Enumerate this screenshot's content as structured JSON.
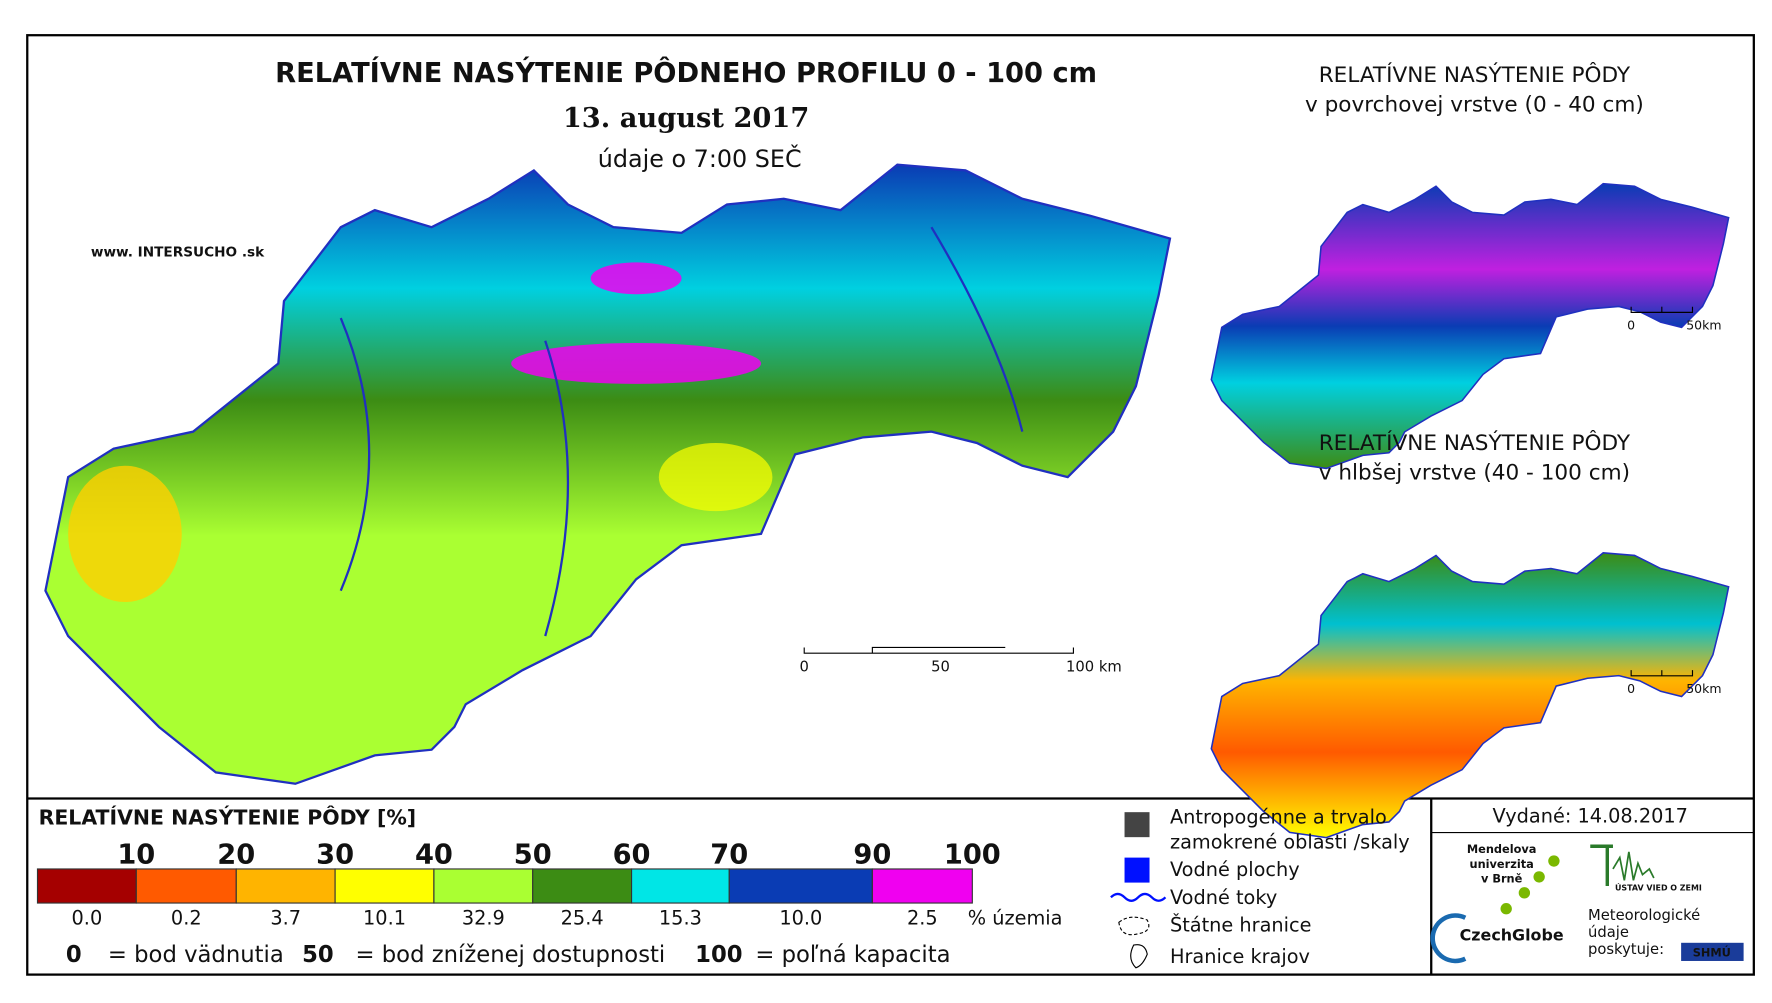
{
  "header": {
    "title": "RELATÍVNE NASÝTENIE PÔDNEHO PROFILU 0 - 100 cm",
    "date": "13. august 2017",
    "time": "údaje o 7:00 SEČ",
    "website": "www. INTERSUCHO .sk"
  },
  "main_map": {
    "scale": [
      "0",
      "50",
      "100 km"
    ]
  },
  "insets": [
    {
      "title": [
        "RELATÍVNE NASÝTENIE PÔDY",
        "v povrchovej vrstve (0 - 40 cm)"
      ],
      "scale": [
        "0",
        "50km"
      ]
    },
    {
      "title": [
        "RELATÍVNE NASÝTENIE PÔDY",
        "v hlbšej vrstve (40 - 100 cm)"
      ],
      "scale": [
        "0",
        "50km"
      ]
    }
  ],
  "legend": {
    "title": "RELATÍVNE NASÝTENIE PÔDY [%]",
    "classes": [
      {
        "color": "#a50000",
        "upper": "10",
        "share": "0.0"
      },
      {
        "color": "#ff5a00",
        "upper": "20",
        "share": "0.2"
      },
      {
        "color": "#ffb400",
        "upper": "30",
        "share": "3.7"
      },
      {
        "color": "#ffff00",
        "upper": "40",
        "share": "10.1"
      },
      {
        "color": "#aaff32",
        "upper": "50",
        "share": "32.9"
      },
      {
        "color": "#3c8c14",
        "upper": "60",
        "share": "25.4"
      },
      {
        "color": "#00e6e6",
        "upper": "70",
        "share": "15.3"
      },
      {
        "color": "#0a3cb4",
        "upper": "90",
        "share": "10.0"
      },
      {
        "color": "#f000f0",
        "upper": "100",
        "share": "2.5"
      }
    ],
    "share_unit": "% územia",
    "notes": [
      {
        "key": "0",
        "text": "= bod vädnutia"
      },
      {
        "key": "50",
        "text": "= bod zníženej dostupnosti"
      },
      {
        "key": "100",
        "text": "= poľná kapacita"
      }
    ],
    "symbols": [
      "Antropogénne a trvalo zamokrené oblasti /skaly",
      "Vodné plochy",
      "Vodné toky",
      "Štátne hranice",
      "Hranice krajov"
    ]
  },
  "footer": {
    "issued": "Vydané: 14.08.2017",
    "mendel": [
      "Mendelova",
      "univerzita",
      "v Brně"
    ],
    "czechglobe": "CzechGlobe",
    "ustav": "ÚSTAV VIED O ZEMI",
    "meteo": [
      "Meteorologické",
      "údaje",
      "poskytuje:"
    ],
    "shmu": "SHMÚ"
  }
}
